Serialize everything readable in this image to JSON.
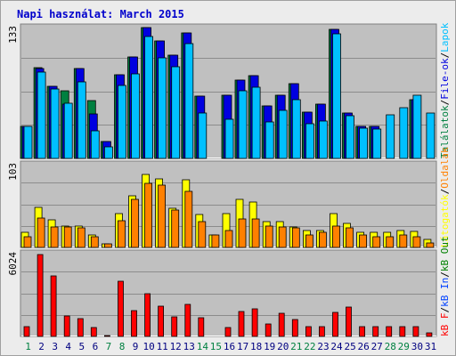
{
  "title": "Napi használat: March 2015",
  "colors": {
    "title": "#0000cc",
    "panel_bg": "#c0c0c0",
    "hits": "#008040",
    "files": "#0000e0",
    "pages": "#00c0ff",
    "visits": "#ffff00",
    "sites": "#ff8000",
    "kbin": "#0040ff",
    "kbout": "#008000",
    "kbf": "#ff0000",
    "weekend_day": "#008040",
    "weekday": "#000080"
  },
  "y_max_labels": {
    "top": "133",
    "middle": "103",
    "bottom": "6024"
  },
  "right_legend": {
    "top": [
      {
        "text": "Találatok",
        "color": "#008040"
      },
      {
        "text": "/",
        "color": "#000000"
      },
      {
        "text": "File-ok",
        "color": "#0000e0"
      },
      {
        "text": "/",
        "color": "#000000"
      },
      {
        "text": "Lapok",
        "color": "#00c0ff"
      }
    ],
    "middle": [
      {
        "text": "Látogatók",
        "color": "#ffff00"
      },
      {
        "text": "/",
        "color": "#000000"
      },
      {
        "text": "Oldalak",
        "color": "#ff8000"
      }
    ],
    "bottom": [
      {
        "text": "kB F",
        "color": "#ff0000"
      },
      {
        "text": "/",
        "color": "#000000"
      },
      {
        "text": "kB In",
        "color": "#0040ff"
      },
      {
        "text": "/",
        "color": "#000000"
      },
      {
        "text": "kB Out",
        "color": "#008000"
      }
    ]
  },
  "chart_data": {
    "type": "bar",
    "title": "Napi használat: March 2015",
    "categories": [
      "1",
      "2",
      "3",
      "4",
      "5",
      "6",
      "7",
      "8",
      "9",
      "10",
      "11",
      "12",
      "13",
      "14",
      "15",
      "16",
      "17",
      "18",
      "19",
      "20",
      "21",
      "22",
      "23",
      "24",
      "25",
      "26",
      "27",
      "28",
      "29",
      "30",
      "31"
    ],
    "weekend_days": [
      "1",
      "7",
      "8",
      "14",
      "15",
      "21",
      "22",
      "28",
      "29"
    ],
    "panels": [
      {
        "panel": "top",
        "ylim": [
          0,
          133
        ],
        "series": [
          {
            "name": "Találatok",
            "values": [
              33,
              92,
              73,
              69,
              91,
              59,
              17,
              85,
              103,
              133,
              119,
              105,
              128,
              63,
              0,
              64,
              80,
              84,
              53,
              64,
              76,
              47,
              55,
              131,
              46,
              33,
              33,
              0,
              0,
              60,
              0
            ]
          },
          {
            "name": "File-ok",
            "values": [
              33,
              91,
              73,
              55,
              91,
              45,
              17,
              85,
              103,
              133,
              119,
              105,
              128,
              63,
              0,
              64,
              80,
              84,
              53,
              64,
              76,
              47,
              55,
              131,
              46,
              33,
              33,
              0,
              0,
              60,
              0
            ]
          },
          {
            "name": "Lapok",
            "values": [
              33,
              88,
              71,
              56,
              78,
              28,
              12,
              74,
              86,
              124,
              102,
              93,
              117,
              46,
              0,
              40,
              69,
              72,
              37,
              49,
              60,
              35,
              38,
              127,
              43,
              31,
              30,
              44,
              52,
              64,
              46
            ]
          }
        ]
      },
      {
        "panel": "middle",
        "ylim": [
          0,
          103
        ],
        "series": [
          {
            "name": "Látogatók",
            "values": [
              19,
              50,
              34,
              27,
              27,
              15,
              4,
              42,
              64,
              91,
              85,
              49,
              84,
              41,
              16,
              42,
              60,
              57,
              32,
              32,
              25,
              21,
              21,
              42,
              30,
              19,
              19,
              19,
              21,
              20,
              10
            ]
          },
          {
            "name": "Oldalak",
            "values": [
              13,
              36,
              25,
              25,
              24,
              13,
              4,
              33,
              60,
              80,
              77,
              46,
              70,
              32,
              15,
              21,
              35,
              35,
              27,
              26,
              24,
              15,
              19,
              27,
              24,
              15,
              13,
              13,
              15,
              13,
              6
            ]
          }
        ]
      },
      {
        "panel": "bottom",
        "ylim": [
          0,
          6024
        ],
        "series": [
          {
            "name": "kB F",
            "values": [
              730,
              5990,
              4410,
              1490,
              1280,
              640,
              60,
              3990,
              1870,
              3110,
              2230,
              1450,
              2350,
              1330,
              0,
              640,
              1820,
              1980,
              910,
              1660,
              1250,
              740,
              740,
              1780,
              2140,
              710,
              710,
              740,
              740,
              740,
              240
            ]
          }
        ]
      }
    ]
  }
}
